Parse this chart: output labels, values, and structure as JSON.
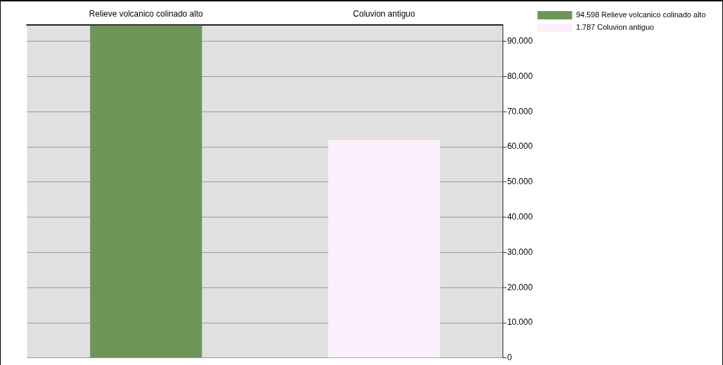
{
  "chart_data": {
    "type": "bar",
    "categories": [
      "Relieve volcanico colinado alto",
      "Coluvion antiguo"
    ],
    "series": [
      {
        "name": "94.598 Relieve volcanico colinado alto",
        "color": "#6e9659",
        "values": [
          94600,
          null
        ]
      },
      {
        "name": "1.787 Coluvion antiguo",
        "color": "#fcf0fc",
        "values": [
          null,
          62000
        ]
      }
    ],
    "ylim": [
      0,
      94600
    ],
    "yticks": [
      0,
      {
        "value": 10000,
        "label": "10.000"
      },
      {
        "value": 20000,
        "label": "20.000"
      },
      {
        "value": 30000,
        "label": "30.000"
      },
      {
        "value": 40000,
        "label": "40.000"
      },
      {
        "value": 50000,
        "label": "50.000"
      },
      {
        "value": 60000,
        "label": "60.000"
      },
      {
        "value": 70000,
        "label": "70.000"
      },
      {
        "value": 80000,
        "label": "80.000"
      },
      {
        "value": 90000,
        "label": "90.000"
      }
    ],
    "grid": "y",
    "legend": "top right"
  }
}
